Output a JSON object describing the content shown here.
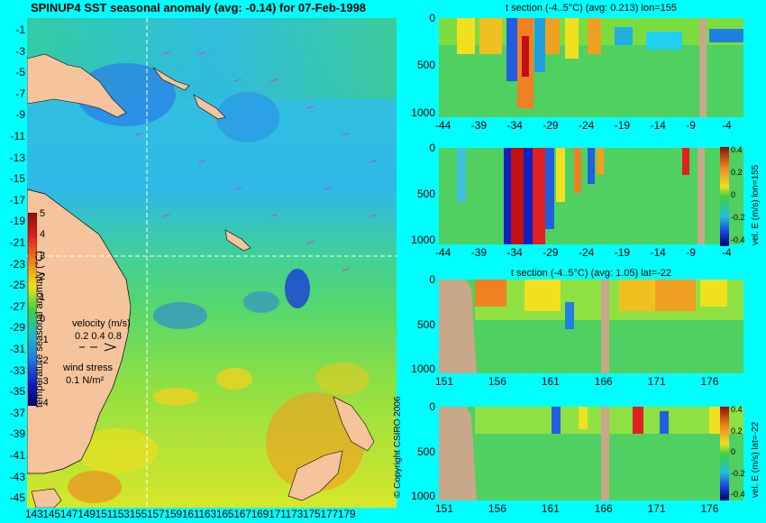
{
  "main_map": {
    "title": "SPINUP4 SST seasonal anomaly (avg: -0.14) for 07-Feb-1998",
    "lat_ticks": [
      "-1",
      "-3",
      "-5",
      "-7",
      "-9",
      "-11",
      "-13",
      "-15",
      "-17",
      "-19",
      "-21",
      "-23",
      "-25",
      "-27",
      "-29",
      "-31",
      "-33",
      "-35",
      "-37",
      "-39",
      "-41",
      "-43",
      "-45"
    ],
    "lon_ticks_text": "143145147149151153155157159161163165167169171173175177179",
    "colorbar_label": "temperature seasonal anomaly (°C)",
    "colorbar_ticks": [
      "5",
      "4",
      "3",
      "2",
      "1",
      "0",
      "-1",
      "-2",
      "-3",
      "-4"
    ],
    "velocity_label": "velocity (m/s)",
    "velocity_scale": "0.2 0.4 0.8",
    "wind_label": "wind stress",
    "wind_scale": "0.1 N/m²",
    "copyright": "© Copyright CSIRO 2006"
  },
  "chart_data": [
    {
      "type": "heatmap",
      "title": "SPINUP4 SST seasonal anomaly (avg: -0.14) for 07-Feb-1998",
      "x_ticks": [
        143,
        145,
        147,
        149,
        151,
        153,
        155,
        157,
        159,
        161,
        163,
        165,
        167,
        169,
        171,
        173,
        175,
        177,
        179
      ],
      "y_ticks": [
        -1,
        -3,
        -5,
        -7,
        -9,
        -11,
        -13,
        -15,
        -17,
        -19,
        -21,
        -23,
        -25,
        -27,
        -29,
        -31,
        -33,
        -35,
        -37,
        -39,
        -41,
        -43,
        -45
      ],
      "colorbar": {
        "label": "temperature seasonal anomaly (°C)",
        "range": [
          -4,
          5
        ]
      },
      "crosshair": {
        "lon": 155,
        "lat": -22
      },
      "average": -0.14
    },
    {
      "type": "heatmap",
      "title": "t section (-4..5°C) (avg: 0.213) lon=155",
      "x_ticks": [
        "-44",
        "-39",
        "-34",
        "-29",
        "-24",
        "-19",
        "-14",
        "-9",
        "-4"
      ],
      "y_ticks": [
        "0",
        "500",
        "1000"
      ],
      "average": 0.213
    },
    {
      "type": "heatmap",
      "title": "",
      "x_ticks": [
        "-44",
        "-39",
        "-34",
        "-29",
        "-24",
        "-19",
        "-14",
        "-9",
        "-4"
      ],
      "y_ticks": [
        "0",
        "500",
        "1000"
      ],
      "colorbar": {
        "label": "vel. E (m/s) lon=155",
        "ticks": [
          "0.4",
          "0.2",
          "0",
          "-0.2",
          "-0.4"
        ]
      }
    },
    {
      "type": "heatmap",
      "title": "t section (-4..5°C) (avg: 1.05) lat=-22",
      "x_ticks": [
        "151",
        "156",
        "161",
        "166",
        "171",
        "176"
      ],
      "y_ticks": [
        "0",
        "500",
        "1000"
      ],
      "average": 1.05
    },
    {
      "type": "heatmap",
      "title": "",
      "x_ticks": [
        "151",
        "156",
        "161",
        "166",
        "171",
        "176"
      ],
      "y_ticks": [
        "0",
        "500",
        "1000"
      ],
      "colorbar": {
        "label": "vel. E (m/s) lat=-22",
        "ticks": [
          "0.4",
          "0.2",
          "0",
          "-0.2",
          "-0.4"
        ]
      }
    }
  ],
  "colors": {
    "background": "#00ffff",
    "land": "#f5c49c",
    "section_land": "#c8a888",
    "crosshair": "#ffffff"
  }
}
